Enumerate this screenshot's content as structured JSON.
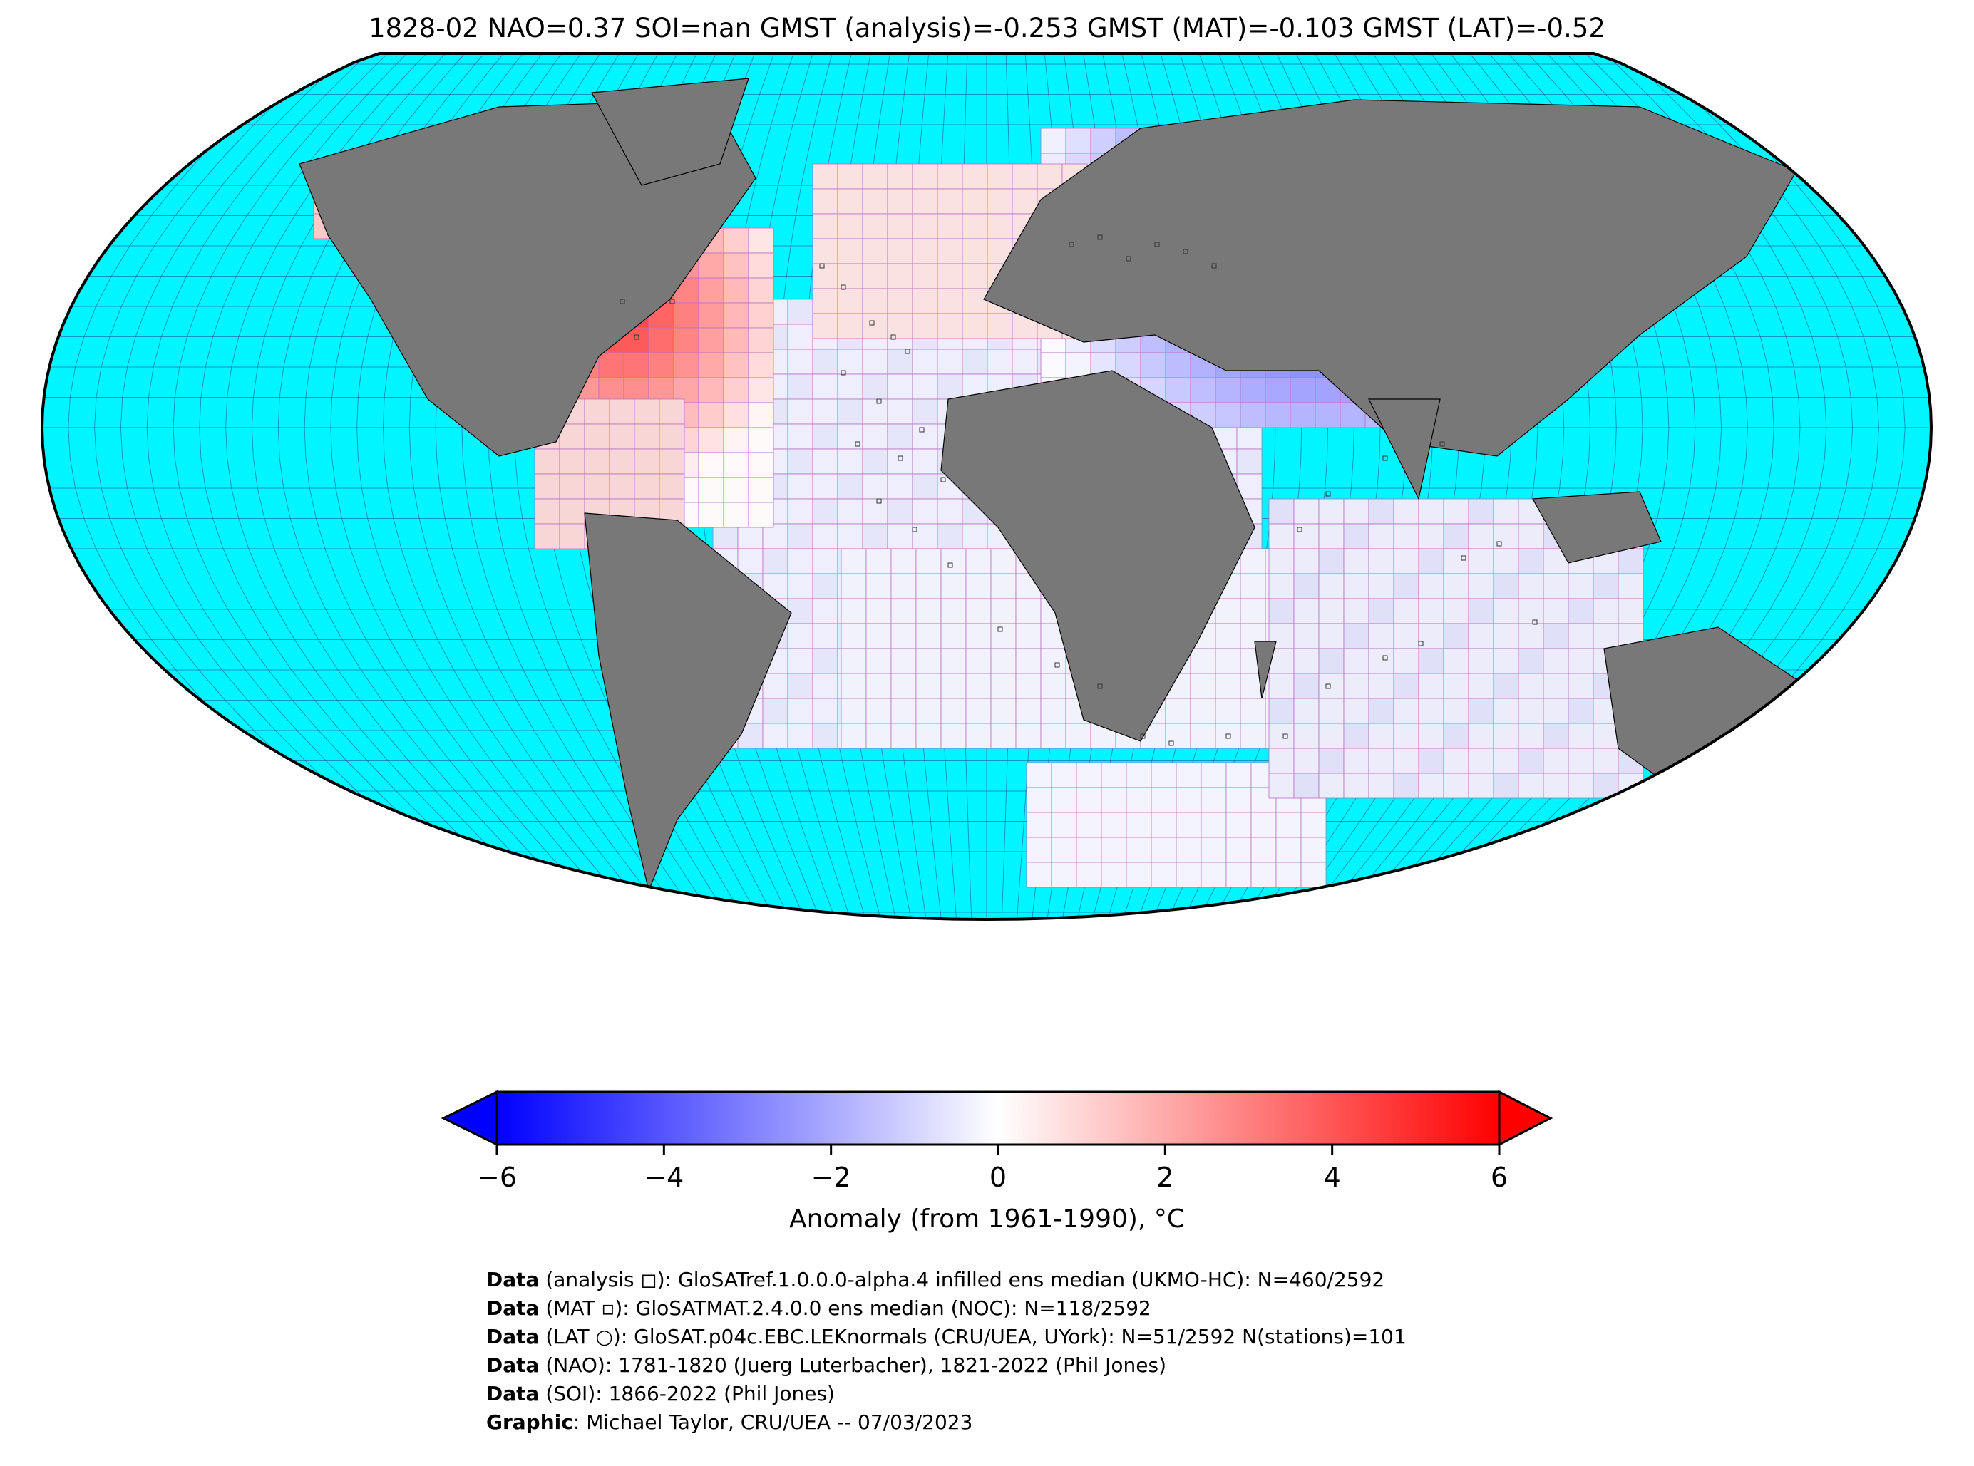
{
  "title": "1828-02 NAO=0.37 SOI=nan GMST (analysis)=-0.253 GMST (MAT)=-0.103 GMST (LAT)=-0.52",
  "map": {
    "projection": "Robinson",
    "ocean_color": "#00f5ff",
    "land_color": "#787878",
    "graticule_color": "#1a4a9a",
    "grid_cell_outline": "#b870c0"
  },
  "colorbar": {
    "label": "Anomaly (from 1961-1990), °C",
    "ticks": [
      "−6",
      "−4",
      "−2",
      "0",
      "2",
      "4",
      "6"
    ],
    "range": [
      -6,
      6
    ],
    "colormap": "bwr",
    "extend": "both"
  },
  "legend": [
    {
      "bold": "Data",
      "text": " (analysis ◻): GloSATref.1.0.0.0-alpha.4 infilled ens median (UKMO-HC): N=460/2592"
    },
    {
      "bold": "Data",
      "text": " (MAT ▫): GloSATMAT.2.4.0.0 ens median (NOC): N=118/2592"
    },
    {
      "bold": "Data",
      "text": " (LAT ○): GloSAT.p04c.EBC.LEKnormals (CRU/UEA, UYork): N=51/2592 N(stations)=101"
    },
    {
      "bold": "Data",
      "text": " (NAO): 1781-1820 (Juerg Luterbacher), 1821-2022 (Phil Jones)"
    },
    {
      "bold": "Data",
      "text": " (SOI): 1866-2022 (Phil Jones)"
    },
    {
      "bold": "Graphic",
      "text": ": Michael Taylor, CRU/UEA -- 07/03/2023"
    }
  ]
}
